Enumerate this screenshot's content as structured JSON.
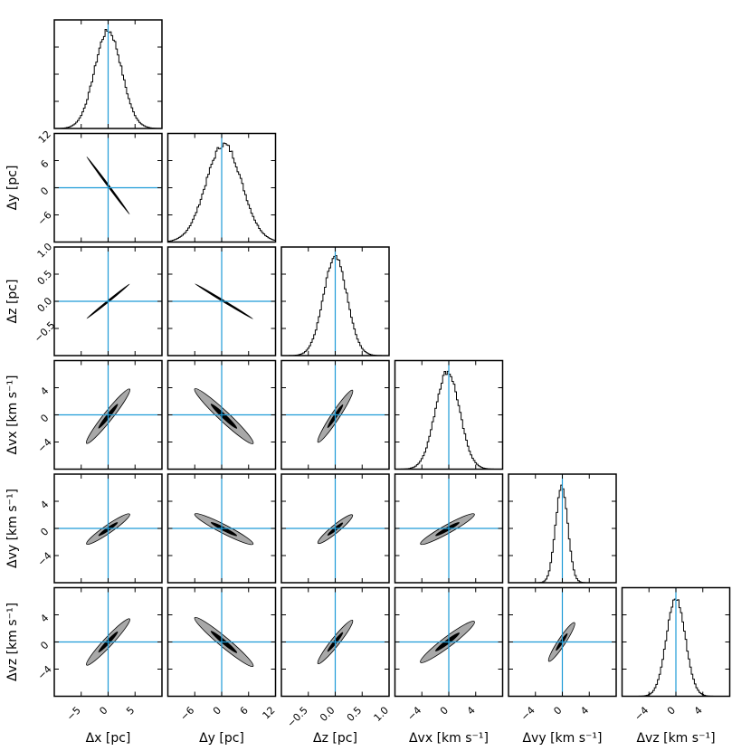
{
  "chart_data": {
    "type": "corner",
    "title": "",
    "variables": [
      {
        "key": "dx",
        "label": "Δx [pc]",
        "range": [
          -10,
          10
        ],
        "ticks": [
          -5,
          0,
          5
        ],
        "tick_labels": [
          "−5",
          "0",
          "5"
        ],
        "truth": 0
      },
      {
        "key": "dy",
        "label": "Δy [pc]",
        "range": [
          -12,
          12
        ],
        "ticks": [
          -6,
          0,
          6,
          12
        ],
        "tick_labels": [
          "−6",
          "0",
          "6",
          "12"
        ],
        "truth": 0
      },
      {
        "key": "dz",
        "label": "Δz [pc]",
        "range": [
          -1,
          1
        ],
        "ticks": [
          -0.5,
          0,
          0.5,
          1.0
        ],
        "tick_labels": [
          "−0.5",
          "0.0",
          "0.5",
          "1.0"
        ],
        "truth": 0
      },
      {
        "key": "dvx",
        "label": "Δvx [km s⁻¹]",
        "range": [
          -8,
          8
        ],
        "ticks": [
          -4,
          0,
          4
        ],
        "tick_labels": [
          "−4",
          "0",
          "4"
        ],
        "truth": 0
      },
      {
        "key": "dvy",
        "label": "Δvy [km s⁻¹]",
        "range": [
          -8,
          8
        ],
        "ticks": [
          -4,
          0,
          4
        ],
        "tick_labels": [
          "−4",
          "0",
          "4"
        ],
        "truth": 0
      },
      {
        "key": "dvz",
        "label": "Δvz [km s⁻¹]",
        "range": [
          -8,
          8
        ],
        "ticks": [
          -4,
          0,
          4
        ],
        "tick_labels": [
          "−4",
          "0",
          "4"
        ],
        "truth": 0
      }
    ],
    "axis_labels": {
      "x": [
        "Δx [pc]",
        "Δy [pc]",
        "Δz [pc]",
        "Δvx [km s⁻¹]",
        "Δvy [km s⁻¹]",
        "Δvz [km s⁻¹]"
      ],
      "y": [
        "Δy [pc]",
        "Δz [pc]",
        "Δvx [km s⁻¹]",
        "Δvy [km s⁻¹]",
        "Δvz [km s⁻¹]"
      ]
    },
    "marginals": [
      {
        "var": "dx",
        "center": 0.0,
        "sigma": 2.5
      },
      {
        "var": "dy",
        "center": 0.5,
        "sigma": 4.0
      },
      {
        "var": "dz",
        "center": 0.0,
        "sigma": 0.22
      },
      {
        "var": "dvx",
        "center": -0.2,
        "sigma": 1.8
      },
      {
        "var": "dvy",
        "center": -0.1,
        "sigma": 0.9
      },
      {
        "var": "dvz",
        "center": 0.0,
        "sigma": 1.4
      }
    ],
    "covariances": [
      {
        "x": "dx",
        "y": "dy",
        "slope": -1.6,
        "halflength": 4.0,
        "halfwidth": 0.15,
        "style": "thin"
      },
      {
        "x": "dx",
        "y": "dz",
        "slope": 0.08,
        "halflength": 4.0,
        "halfwidth": 0.02,
        "style": "thin"
      },
      {
        "x": "dy",
        "y": "dz",
        "slope": -0.05,
        "halflength": 6.5,
        "halfwidth": 0.02,
        "style": "thin"
      },
      {
        "x": "dx",
        "y": "dvx",
        "slope": 1.0,
        "halflength": 4.0,
        "halfwidth": 0.9,
        "style": "contour"
      },
      {
        "x": "dy",
        "y": "dvx",
        "slope": -0.62,
        "halflength": 6.5,
        "halfwidth": 0.9,
        "style": "contour"
      },
      {
        "x": "dz",
        "y": "dvx",
        "slope": 12.0,
        "halflength": 0.32,
        "halfwidth": 0.9,
        "style": "contour"
      },
      {
        "x": "dx",
        "y": "dvy",
        "slope": 0.55,
        "halflength": 4.0,
        "halfwidth": 0.6,
        "style": "contour"
      },
      {
        "x": "dy",
        "y": "dvy",
        "slope": -0.34,
        "halflength": 6.5,
        "halfwidth": 0.6,
        "style": "contour"
      },
      {
        "x": "dz",
        "y": "dvy",
        "slope": 6.5,
        "halflength": 0.32,
        "halfwidth": 0.6,
        "style": "contour"
      },
      {
        "x": "dvx",
        "y": "dvy",
        "slope": 0.55,
        "halflength": 4.0,
        "halfwidth": 0.6,
        "style": "contour"
      },
      {
        "x": "dx",
        "y": "dvz",
        "slope": 0.85,
        "halflength": 4.0,
        "halfwidth": 0.8,
        "style": "contour"
      },
      {
        "x": "dy",
        "y": "dvz",
        "slope": -0.55,
        "halflength": 6.5,
        "halfwidth": 0.8,
        "style": "contour"
      },
      {
        "x": "dz",
        "y": "dvz",
        "slope": 10.0,
        "halflength": 0.32,
        "halfwidth": 0.8,
        "style": "contour"
      },
      {
        "x": "dvx",
        "y": "dvz",
        "slope": 0.75,
        "halflength": 4.0,
        "halfwidth": 0.8,
        "style": "contour"
      },
      {
        "x": "dvy",
        "y": "dvz",
        "slope": 1.5,
        "halflength": 1.9,
        "halfwidth": 0.8,
        "style": "contour"
      }
    ],
    "colors": {
      "truth_line": "#1e9bd7",
      "contour_outer": "#a8a8a8",
      "contour_inner": "#000000",
      "hist": "#000000",
      "frame": "#000000"
    },
    "grid": false,
    "legend": "none"
  }
}
